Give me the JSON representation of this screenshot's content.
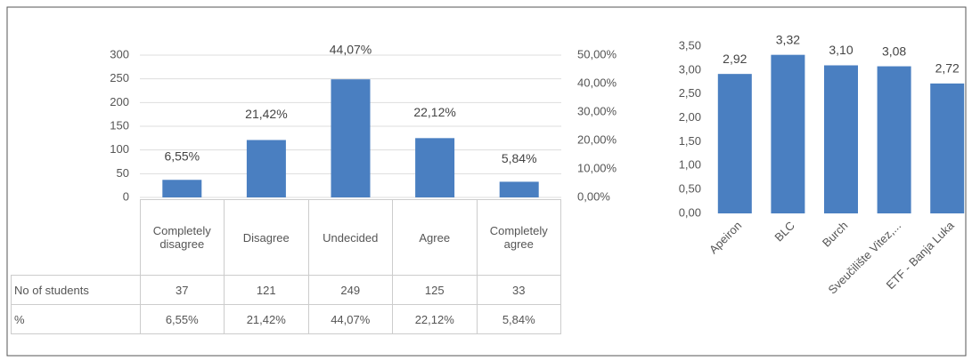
{
  "chart_data": [
    {
      "type": "bar",
      "categories": [
        "Completely disagree",
        "Disagree",
        "Undecided",
        "Agree",
        "Completely agree"
      ],
      "series": [
        {
          "name": "No of students",
          "color": "#4a7fc1",
          "values": [
            37,
            121,
            249,
            125,
            33
          ]
        },
        {
          "name": "%",
          "axis": "y2",
          "values": [
            6.55,
            21.42,
            44.07,
            22.12,
            5.84
          ],
          "value_labels": [
            "6,55%",
            "21,42%",
            "44,07%",
            "22,12%",
            "5,84%"
          ]
        }
      ],
      "ylim": [
        0,
        300
      ],
      "yticks": [
        0,
        50,
        100,
        150,
        200,
        250,
        300
      ],
      "y2lim": [
        0,
        50
      ],
      "y2ticks": [
        {
          "value": 0,
          "label": "0,00%"
        },
        {
          "value": 10,
          "label": "10,00%"
        },
        {
          "value": 20,
          "label": "20,00%"
        },
        {
          "value": 30,
          "label": "30,00%"
        },
        {
          "value": 40,
          "label": "40,00%"
        },
        {
          "value": 50,
          "label": "50,00%"
        }
      ],
      "grid": true
    },
    {
      "type": "bar",
      "categories": [
        "Apeiron",
        "BLC",
        "Burch",
        "Sveučilište Vitez,...",
        "ETF - Banja Luka"
      ],
      "values": [
        2.92,
        3.32,
        3.1,
        3.08,
        2.72
      ],
      "value_labels": [
        "2,92",
        "3,32",
        "3,10",
        "3,08",
        "2,72"
      ],
      "color": "#4a7fc1",
      "ylim": [
        0,
        3.5
      ],
      "yticks": [
        {
          "value": 0,
          "label": "0,00"
        },
        {
          "value": 0.5,
          "label": "0,50"
        },
        {
          "value": 1,
          "label": "1,00"
        },
        {
          "value": 1.5,
          "label": "1,50"
        },
        {
          "value": 2,
          "label": "2,00"
        },
        {
          "value": 2.5,
          "label": "2,50"
        },
        {
          "value": 3,
          "label": "3,00"
        },
        {
          "value": 3.5,
          "label": "3,50"
        }
      ],
      "grid": false
    }
  ]
}
